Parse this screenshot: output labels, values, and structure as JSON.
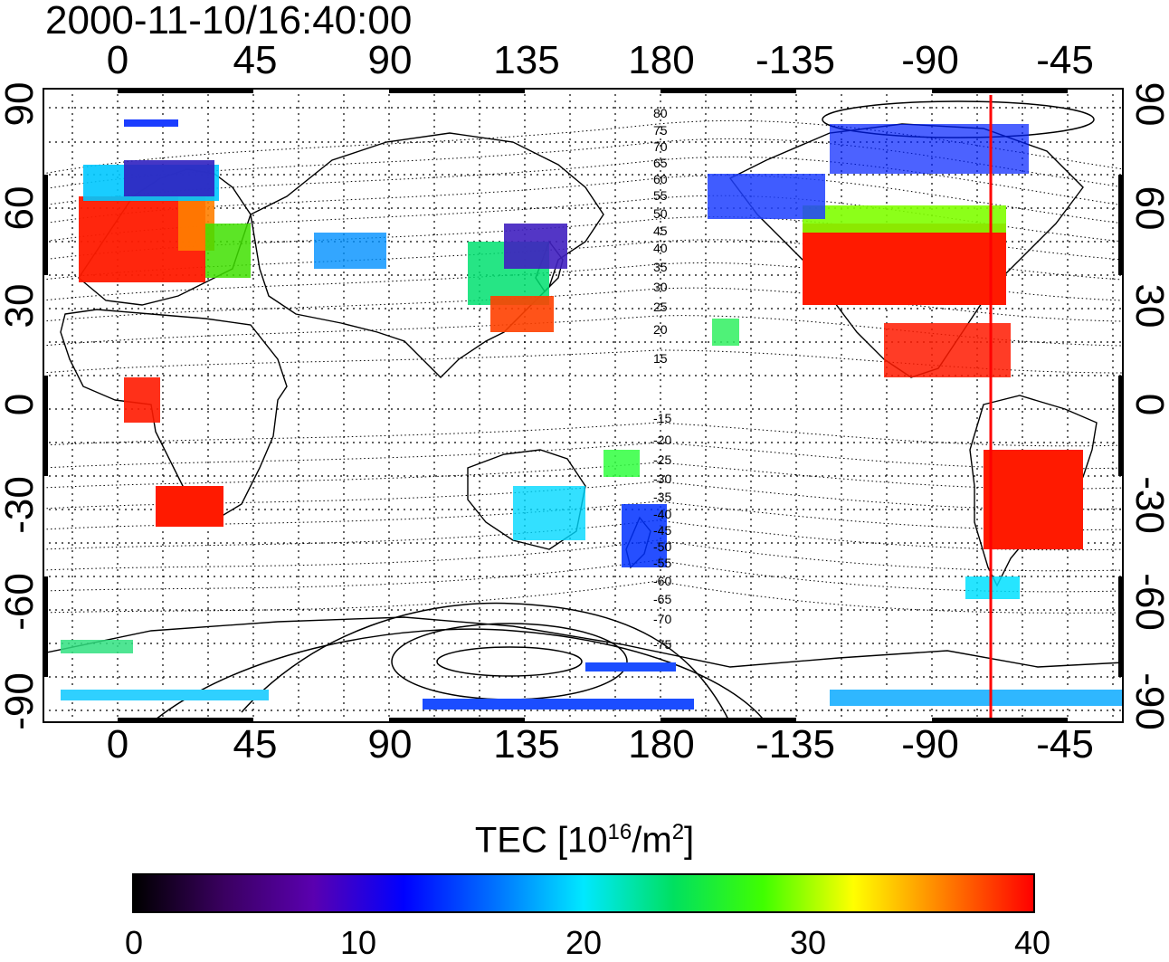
{
  "title": {
    "timestamp": "2000-11-10/16:40:00"
  },
  "map": {
    "top_longitude_ticks": [
      "0",
      "45",
      "90",
      "135",
      "180",
      "-135",
      "-90",
      "-45"
    ],
    "bottom_longitude_ticks": [
      "0",
      "45",
      "90",
      "135",
      "180",
      "-135",
      "-90",
      "-45"
    ],
    "left_latitude_ticks": [
      "90",
      "60",
      "30",
      "0",
      "-30",
      "-60",
      "-90"
    ],
    "right_latitude_ticks": [
      "90",
      "60",
      "30",
      "0",
      "-30",
      "-60",
      "-90"
    ],
    "contour_labels": [
      "80",
      "75",
      "70",
      "65",
      "60",
      "55",
      "50",
      "45",
      "40",
      "35",
      "30",
      "25",
      "20",
      "15",
      "-15",
      "-20",
      "-25",
      "-30",
      "-35",
      "-40",
      "-45",
      "-50",
      "-55",
      "-60",
      "-65",
      "-70",
      "-75"
    ],
    "meridian_marker_color": "#ff0000",
    "land_outline_color": "#000000"
  },
  "colorbar": {
    "title_prefix": "TEC  [10",
    "title_exp1": "16",
    "title_mid": "/m",
    "title_exp2": "2",
    "title_suffix": "]",
    "ticks": [
      "0",
      "10",
      "20",
      "30",
      "40"
    ],
    "range": [
      0,
      40
    ],
    "colors": [
      "#000000",
      "#3a0060",
      "#5a00b0",
      "#0000ff",
      "#0070ff",
      "#00e8ff",
      "#00e060",
      "#40ff00",
      "#ffff00",
      "#ff8000",
      "#ff0000"
    ]
  }
}
